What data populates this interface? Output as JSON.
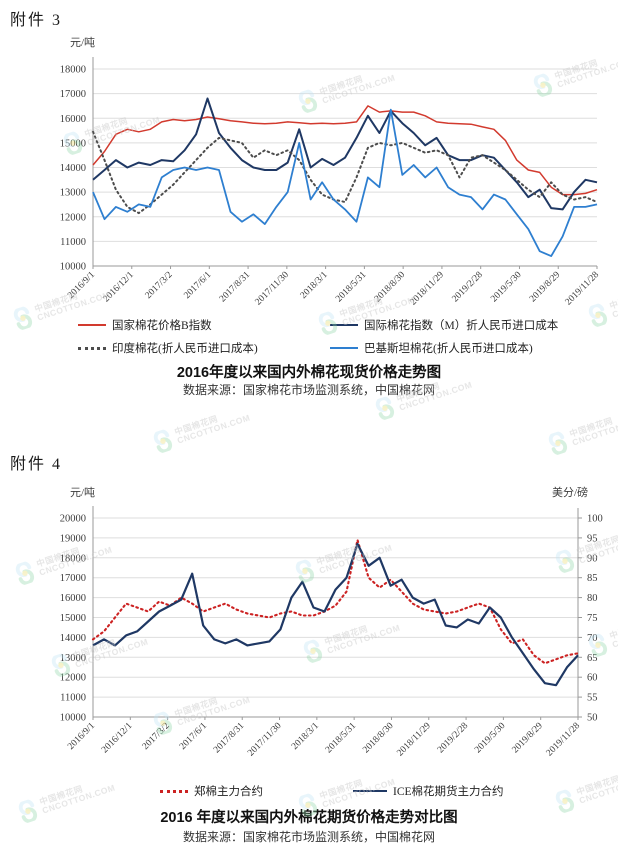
{
  "page": {
    "attachment3_label": "附件 3",
    "attachment4_label": "附件 4"
  },
  "watermark": {
    "line1": "中国棉花网",
    "line2": "CNCOTTON.COM"
  },
  "chart_data": [
    {
      "type": "line",
      "title": "2016年度以来国内外棉花现货价格走势图",
      "source": "数据来源：国家棉花市场监测系统，中国棉花网",
      "grid": true,
      "legend_position": "bottom",
      "left_axis": {
        "unit": "元/吨",
        "min": 10000,
        "max": 18000,
        "step": 1000
      },
      "x_tick_labels": [
        "2016/9/1",
        "2016/12/1",
        "2017/3/2",
        "2017/6/1",
        "2017/8/31",
        "2017/11/30",
        "2018/3/1",
        "2018/5/31",
        "2018/8/30",
        "2018/11/29",
        "2019/2/28",
        "2019/5/30",
        "2019/8/29",
        "2019/11/28"
      ],
      "series": [
        {
          "name": "国家棉花价格B指数",
          "color": "#d23a2e",
          "style": "solid",
          "width": 1.5,
          "axis": "left",
          "values": [
            14100,
            14650,
            15350,
            15550,
            15450,
            15550,
            15850,
            15950,
            15900,
            15950,
            16050,
            15980,
            15900,
            15850,
            15800,
            15780,
            15800,
            15850,
            15820,
            15780,
            15800,
            15780,
            15800,
            15850,
            16500,
            16250,
            16300,
            16250,
            16250,
            16100,
            15850,
            15800,
            15780,
            15760,
            15650,
            15550,
            15100,
            14300,
            13900,
            13800,
            13200,
            12900,
            12900,
            12950,
            13100
          ]
        },
        {
          "name": "国际棉花指数（M）折人民币进口成本",
          "color": "#1f3864",
          "style": "solid",
          "width": 2,
          "axis": "left",
          "values": [
            13500,
            13900,
            14300,
            14000,
            14200,
            14100,
            14300,
            14250,
            14700,
            15350,
            16800,
            15400,
            14800,
            14300,
            14000,
            13900,
            13900,
            14200,
            15550,
            14000,
            14350,
            14100,
            14400,
            15200,
            16100,
            15400,
            16300,
            15800,
            15400,
            14900,
            15200,
            14500,
            14300,
            14300,
            14500,
            14400,
            13900,
            13400,
            12800,
            13100,
            12350,
            12300,
            13000,
            13500,
            13400
          ]
        },
        {
          "name": "印度棉花(折人民币进口成本)",
          "color": "#4d4d4d",
          "style": "dotted",
          "width": 2,
          "axis": "left",
          "values": [
            15450,
            14300,
            13100,
            12400,
            12150,
            12500,
            12900,
            13300,
            13800,
            14300,
            14800,
            15200,
            15100,
            15000,
            14400,
            14700,
            14500,
            14700,
            14300,
            13500,
            12900,
            12700,
            12600,
            13600,
            14800,
            15000,
            14900,
            15000,
            14800,
            14600,
            14700,
            14500,
            13600,
            14400,
            14500,
            14200,
            13900,
            13500,
            13100,
            12800,
            13400,
            12900,
            12700,
            12800,
            12600
          ]
        },
        {
          "name": "巴基斯坦棉花(折人民币进口成本)",
          "color": "#2e7fd0",
          "style": "solid",
          "width": 1.8,
          "axis": "left",
          "values": [
            13000,
            11900,
            12400,
            12200,
            12500,
            12400,
            13600,
            13900,
            14000,
            13900,
            14000,
            13900,
            12200,
            11800,
            12100,
            11700,
            12400,
            13000,
            15000,
            12700,
            13400,
            12700,
            12300,
            11800,
            13600,
            13200,
            16350,
            13700,
            14100,
            13600,
            14000,
            13200,
            12900,
            12800,
            12300,
            12900,
            12700,
            12100,
            11500,
            10600,
            10400,
            11200,
            12400,
            12400,
            12500
          ]
        }
      ]
    },
    {
      "type": "line",
      "title": "2016 年度以来国内外棉花期货价格走势对比图",
      "source": "数据来源：国家棉花市场监测系统，中国棉花网",
      "grid": true,
      "legend_position": "bottom",
      "left_axis": {
        "unit": "元/吨",
        "min": 10000,
        "max": 20000,
        "step": 1000
      },
      "right_axis": {
        "unit": "美分/磅",
        "min": 50,
        "max": 100,
        "step": 5
      },
      "x_tick_labels": [
        "2016/9/1",
        "2016/12/1",
        "2017/3/2",
        "2017/6/1",
        "2017/8/31",
        "2017/11/30",
        "2018/3/1",
        "2018/5/31",
        "2018/8/30",
        "2018/11/29",
        "2019/2/28",
        "2019/5/30",
        "2019/8/29",
        "2019/11/28"
      ],
      "series": [
        {
          "name": "郑棉主力合约",
          "color": "#cc2222",
          "style": "dotted",
          "width": 2.1,
          "axis": "left",
          "values": [
            13900,
            14300,
            15000,
            15700,
            15500,
            15300,
            15800,
            15600,
            16000,
            15700,
            15300,
            15500,
            15700,
            15400,
            15200,
            15100,
            15000,
            15200,
            15300,
            15100,
            15100,
            15300,
            15600,
            16300,
            18900,
            17000,
            16500,
            16900,
            16300,
            15700,
            15400,
            15300,
            15200,
            15300,
            15500,
            15700,
            15500,
            14400,
            13700,
            13900,
            13100,
            12700,
            12900,
            13100,
            13200
          ]
        },
        {
          "name": "ICE棉花期货主力合约",
          "color": "#1f3864",
          "style": "solid",
          "width": 2.2,
          "axis": "right",
          "values": [
            68,
            69.5,
            68,
            70.5,
            71.5,
            74,
            76.5,
            78,
            79.5,
            86,
            73,
            69.5,
            68.5,
            69.5,
            68,
            68.5,
            69,
            72,
            80,
            84,
            77.5,
            76.5,
            82,
            85,
            93.5,
            88,
            90,
            83,
            84.5,
            80,
            78.5,
            79.5,
            73,
            72.5,
            74.5,
            73.5,
            77.5,
            75,
            70,
            66,
            62,
            58.5,
            58,
            62.5,
            65.5
          ]
        }
      ]
    }
  ]
}
